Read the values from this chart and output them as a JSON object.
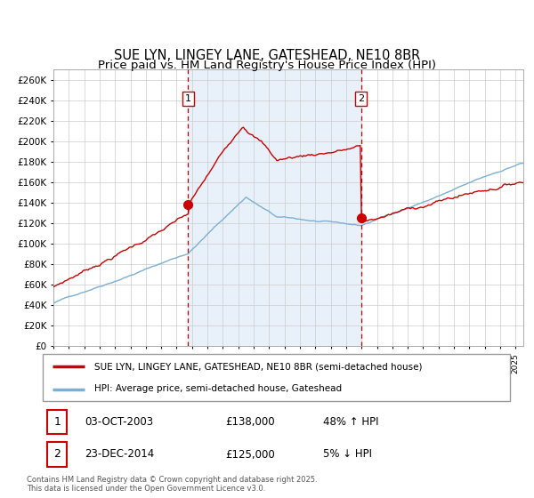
{
  "title": "SUE LYN, LINGEY LANE, GATESHEAD, NE10 8BR",
  "subtitle": "Price paid vs. HM Land Registry's House Price Index (HPI)",
  "ylim": [
    0,
    270000
  ],
  "yticks": [
    0,
    20000,
    40000,
    60000,
    80000,
    100000,
    120000,
    140000,
    160000,
    180000,
    200000,
    220000,
    240000,
    260000
  ],
  "hpi_color": "#7bafd4",
  "price_color": "#cc0000",
  "background_fill": "#d9e8f5",
  "marker_color": "#cc0000",
  "vline_color": "#cc0000",
  "purchase1_date_num": 2003.75,
  "purchase1_price": 138000,
  "purchase1_label": "1",
  "purchase1_date_str": "03-OCT-2003",
  "purchase1_pct": "48% ↑ HPI",
  "purchase2_date_num": 2014.97,
  "purchase2_price": 125000,
  "purchase2_label": "2",
  "purchase2_date_str": "23-DEC-2014",
  "purchase2_pct": "5% ↓ HPI",
  "legend_label1": "SUE LYN, LINGEY LANE, GATESHEAD, NE10 8BR (semi-detached house)",
  "legend_label2": "HPI: Average price, semi-detached house, Gateshead",
  "footer": "Contains HM Land Registry data © Crown copyright and database right 2025.\nThis data is licensed under the Open Government Licence v3.0.",
  "xmin": 1995.0,
  "xmax": 2025.5,
  "title_fontsize": 10.5,
  "subtitle_fontsize": 9.5,
  "grid_color": "#cccccc",
  "spine_color": "#aaaaaa"
}
